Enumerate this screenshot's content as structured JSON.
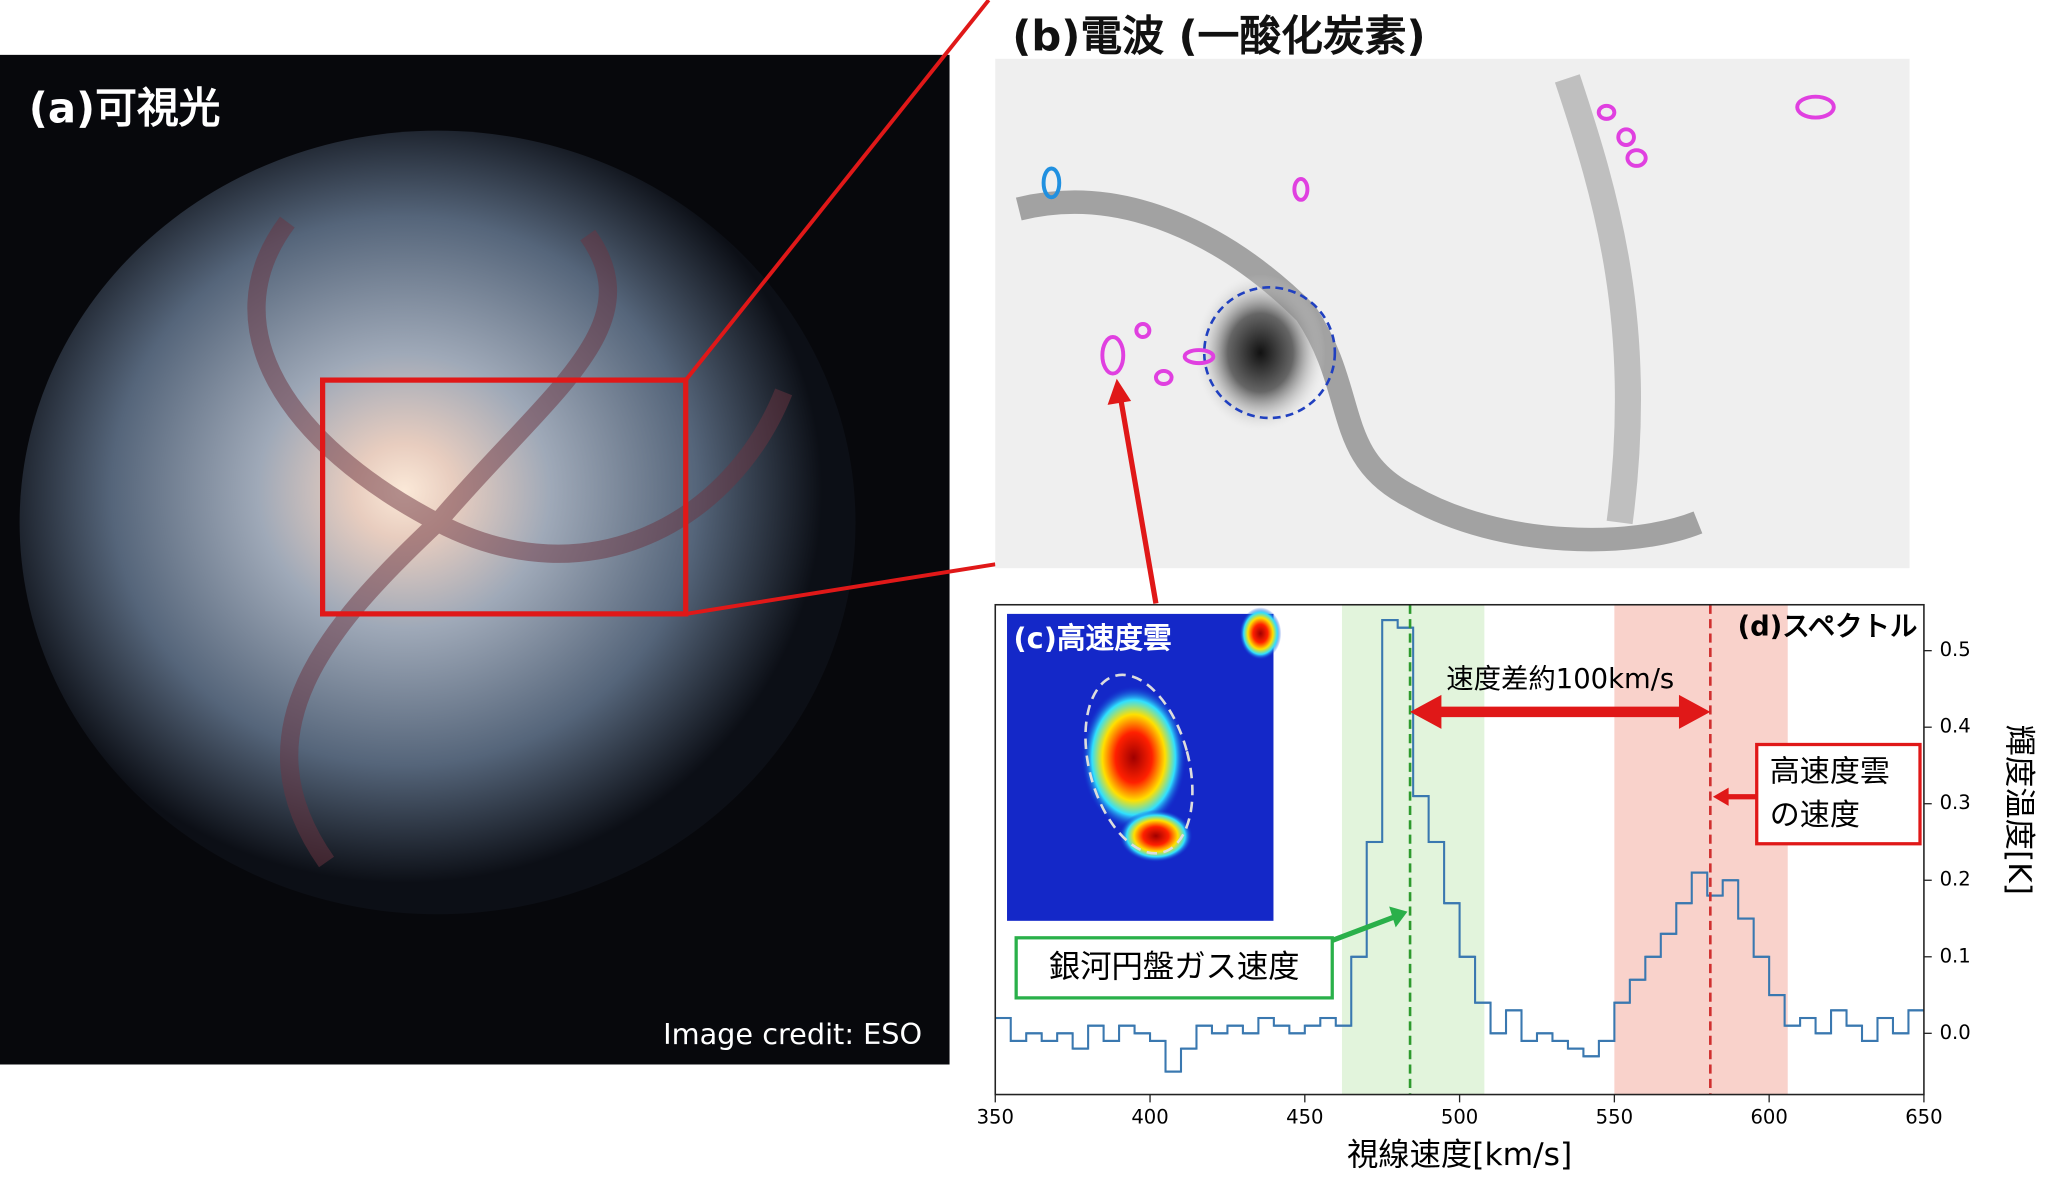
{
  "panels": {
    "optical_title": "(a)可視光",
    "credit": "Image credit: ESO",
    "radio_title": "(b)電波 (一酸化炭素)",
    "inset_title": "(c)高速度雲"
  },
  "chart_data": {
    "type": "histogram",
    "title": "(d)スペクトル",
    "xlabel": "視線速度[km/s]",
    "ylabel": "輝度温度[K]",
    "bins": [
      350,
      355,
      360,
      365,
      370,
      375,
      380,
      385,
      390,
      395,
      400,
      405,
      410,
      415,
      420,
      425,
      430,
      435,
      440,
      445,
      450,
      455,
      460,
      465,
      470,
      475,
      480,
      485,
      490,
      495,
      500,
      505,
      510,
      515,
      520,
      525,
      530,
      535,
      540,
      545,
      550,
      555,
      560,
      565,
      570,
      575,
      580,
      585,
      590,
      595,
      600,
      605,
      610,
      615,
      620,
      625,
      630,
      635,
      640,
      645,
      650
    ],
    "values": [
      0.02,
      -0.01,
      0.0,
      -0.01,
      0.0,
      -0.02,
      0.01,
      -0.01,
      0.01,
      0.0,
      -0.01,
      -0.05,
      -0.02,
      0.01,
      0.0,
      0.01,
      0.0,
      0.02,
      0.01,
      0.0,
      0.01,
      0.02,
      0.01,
      0.1,
      0.25,
      0.54,
      0.53,
      0.31,
      0.25,
      0.17,
      0.1,
      0.04,
      0.0,
      0.03,
      -0.01,
      0.0,
      -0.01,
      -0.02,
      -0.03,
      -0.01,
      0.04,
      0.07,
      0.1,
      0.13,
      0.17,
      0.21,
      0.18,
      0.2,
      0.15,
      0.1,
      0.05,
      0.01,
      0.02,
      0.0,
      0.03,
      0.01,
      -0.01,
      0.02,
      0.0,
      0.03
    ],
    "color": "#3a78b0",
    "xlim": [
      350,
      650
    ],
    "xticks": [
      350,
      400,
      450,
      500,
      550,
      600,
      650
    ],
    "ylim": [
      -0.08,
      0.56
    ],
    "yticks": [
      {
        "value": 0,
        "label": "0.0"
      },
      0.1,
      0.2,
      0.3,
      0.4,
      0.5
    ],
    "bands": [
      {
        "range": [
          462,
          508
        ],
        "color": "#e2f4dc"
      },
      {
        "range": [
          550,
          606
        ],
        "color": "#f9d2cb"
      }
    ],
    "vlines": [
      {
        "value": 484,
        "color": "#2e9a2e"
      },
      {
        "value": 581,
        "color": "#d03030"
      }
    ],
    "annotations": {
      "difference": "速度差約100km/s",
      "cloud_speed": [
        "高速度雲",
        "の速度"
      ],
      "disk_speed": "銀河円盤ガス速度"
    }
  }
}
